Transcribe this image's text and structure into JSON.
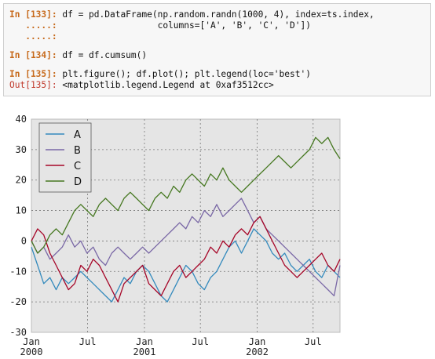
{
  "cells": [
    {
      "in_prompt": "In [133]:",
      "lines": [
        {
          "prompt": "In [133]:",
          "code": " df = pd.DataFrame(np.random.randn(1000, 4), index=ts.index,"
        },
        {
          "prompt": "   .....:",
          "code": "                   columns=['A', 'B', 'C', 'D'])"
        },
        {
          "prompt": "   .....:",
          "code": ""
        }
      ]
    },
    {
      "lines": [
        {
          "prompt": "In [134]:",
          "code": " df = df.cumsum()"
        }
      ]
    },
    {
      "lines": [
        {
          "prompt": "In [135]:",
          "code": " plt.figure(); df.plot(); plt.legend(loc='best')"
        }
      ],
      "out_prompt": "Out[135]:",
      "out_text": " <matplotlib.legend.Legend at 0xaf3512cc>"
    }
  ],
  "chart_data": {
    "type": "line",
    "title": "",
    "xlabel": "",
    "ylabel": "",
    "ylim": [
      -30,
      40
    ],
    "y_ticks": [
      -30,
      -20,
      -10,
      0,
      10,
      20,
      30,
      40
    ],
    "x_ticks": [
      {
        "label": "Jan\n2000",
        "t": 0
      },
      {
        "label": "Jul",
        "t": 182
      },
      {
        "label": "Jan\n2001",
        "t": 366
      },
      {
        "label": "Jul",
        "t": 547
      },
      {
        "label": "Jan\n2002",
        "t": 731
      },
      {
        "label": "Jul",
        "t": 912
      }
    ],
    "x_range_days": [
      0,
      999
    ],
    "grid": true,
    "legend_position": "top-left",
    "series": [
      {
        "name": "A",
        "color": "#348abd",
        "points": [
          [
            0,
            -2
          ],
          [
            20,
            -8
          ],
          [
            40,
            -14
          ],
          [
            60,
            -12
          ],
          [
            80,
            -16
          ],
          [
            100,
            -12
          ],
          [
            120,
            -14
          ],
          [
            140,
            -12
          ],
          [
            160,
            -10
          ],
          [
            180,
            -12
          ],
          [
            200,
            -14
          ],
          [
            220,
            -16
          ],
          [
            240,
            -18
          ],
          [
            260,
            -20
          ],
          [
            280,
            -16
          ],
          [
            300,
            -12
          ],
          [
            320,
            -14
          ],
          [
            340,
            -10
          ],
          [
            360,
            -8
          ],
          [
            380,
            -10
          ],
          [
            400,
            -14
          ],
          [
            420,
            -18
          ],
          [
            440,
            -20
          ],
          [
            460,
            -16
          ],
          [
            480,
            -12
          ],
          [
            500,
            -8
          ],
          [
            520,
            -10
          ],
          [
            540,
            -14
          ],
          [
            560,
            -16
          ],
          [
            580,
            -12
          ],
          [
            600,
            -10
          ],
          [
            620,
            -6
          ],
          [
            640,
            -2
          ],
          [
            660,
            0
          ],
          [
            680,
            -4
          ],
          [
            700,
            0
          ],
          [
            720,
            4
          ],
          [
            740,
            2
          ],
          [
            760,
            0
          ],
          [
            780,
            -4
          ],
          [
            800,
            -6
          ],
          [
            820,
            -4
          ],
          [
            840,
            -8
          ],
          [
            860,
            -10
          ],
          [
            880,
            -8
          ],
          [
            900,
            -6
          ],
          [
            920,
            -10
          ],
          [
            940,
            -12
          ],
          [
            960,
            -8
          ],
          [
            980,
            -10
          ],
          [
            999,
            -12
          ]
        ]
      },
      {
        "name": "B",
        "color": "#7a68a6",
        "points": [
          [
            0,
            0
          ],
          [
            20,
            -4
          ],
          [
            40,
            -2
          ],
          [
            60,
            -6
          ],
          [
            80,
            -4
          ],
          [
            100,
            -2
          ],
          [
            120,
            2
          ],
          [
            140,
            -2
          ],
          [
            160,
            0
          ],
          [
            180,
            -4
          ],
          [
            200,
            -2
          ],
          [
            220,
            -6
          ],
          [
            240,
            -8
          ],
          [
            260,
            -4
          ],
          [
            280,
            -2
          ],
          [
            300,
            -4
          ],
          [
            320,
            -6
          ],
          [
            340,
            -4
          ],
          [
            360,
            -2
          ],
          [
            380,
            -4
          ],
          [
            400,
            -2
          ],
          [
            420,
            0
          ],
          [
            440,
            2
          ],
          [
            460,
            4
          ],
          [
            480,
            6
          ],
          [
            500,
            4
          ],
          [
            520,
            8
          ],
          [
            540,
            6
          ],
          [
            560,
            10
          ],
          [
            580,
            8
          ],
          [
            600,
            12
          ],
          [
            620,
            8
          ],
          [
            640,
            10
          ],
          [
            660,
            12
          ],
          [
            680,
            14
          ],
          [
            700,
            10
          ],
          [
            720,
            6
          ],
          [
            740,
            8
          ],
          [
            760,
            4
          ],
          [
            780,
            2
          ],
          [
            800,
            0
          ],
          [
            820,
            -2
          ],
          [
            840,
            -4
          ],
          [
            860,
            -6
          ],
          [
            880,
            -8
          ],
          [
            900,
            -10
          ],
          [
            920,
            -12
          ],
          [
            940,
            -14
          ],
          [
            960,
            -16
          ],
          [
            980,
            -18
          ],
          [
            999,
            -8
          ]
        ]
      },
      {
        "name": "C",
        "color": "#a60628",
        "points": [
          [
            0,
            0
          ],
          [
            20,
            4
          ],
          [
            40,
            2
          ],
          [
            60,
            -4
          ],
          [
            80,
            -8
          ],
          [
            100,
            -12
          ],
          [
            120,
            -16
          ],
          [
            140,
            -14
          ],
          [
            160,
            -8
          ],
          [
            180,
            -10
          ],
          [
            200,
            -6
          ],
          [
            220,
            -8
          ],
          [
            240,
            -12
          ],
          [
            260,
            -16
          ],
          [
            280,
            -20
          ],
          [
            300,
            -14
          ],
          [
            320,
            -12
          ],
          [
            340,
            -10
          ],
          [
            360,
            -8
          ],
          [
            380,
            -14
          ],
          [
            400,
            -16
          ],
          [
            420,
            -18
          ],
          [
            440,
            -14
          ],
          [
            460,
            -10
          ],
          [
            480,
            -8
          ],
          [
            500,
            -12
          ],
          [
            520,
            -10
          ],
          [
            540,
            -8
          ],
          [
            560,
            -6
          ],
          [
            580,
            -2
          ],
          [
            600,
            -4
          ],
          [
            620,
            0
          ],
          [
            640,
            -2
          ],
          [
            660,
            2
          ],
          [
            680,
            4
          ],
          [
            700,
            2
          ],
          [
            720,
            6
          ],
          [
            740,
            8
          ],
          [
            760,
            4
          ],
          [
            780,
            0
          ],
          [
            800,
            -4
          ],
          [
            820,
            -8
          ],
          [
            840,
            -10
          ],
          [
            860,
            -12
          ],
          [
            880,
            -10
          ],
          [
            900,
            -8
          ],
          [
            920,
            -6
          ],
          [
            940,
            -4
          ],
          [
            960,
            -8
          ],
          [
            980,
            -10
          ],
          [
            999,
            -6
          ]
        ]
      },
      {
        "name": "D",
        "color": "#467821",
        "points": [
          [
            0,
            0
          ],
          [
            20,
            -4
          ],
          [
            40,
            -2
          ],
          [
            60,
            2
          ],
          [
            80,
            4
          ],
          [
            100,
            2
          ],
          [
            120,
            6
          ],
          [
            140,
            10
          ],
          [
            160,
            12
          ],
          [
            180,
            10
          ],
          [
            200,
            8
          ],
          [
            220,
            12
          ],
          [
            240,
            14
          ],
          [
            260,
            12
          ],
          [
            280,
            10
          ],
          [
            300,
            14
          ],
          [
            320,
            16
          ],
          [
            340,
            14
          ],
          [
            360,
            12
          ],
          [
            380,
            10
          ],
          [
            400,
            14
          ],
          [
            420,
            16
          ],
          [
            440,
            14
          ],
          [
            460,
            18
          ],
          [
            480,
            16
          ],
          [
            500,
            20
          ],
          [
            520,
            22
          ],
          [
            540,
            20
          ],
          [
            560,
            18
          ],
          [
            580,
            22
          ],
          [
            600,
            20
          ],
          [
            620,
            24
          ],
          [
            640,
            20
          ],
          [
            660,
            18
          ],
          [
            680,
            16
          ],
          [
            700,
            18
          ],
          [
            720,
            20
          ],
          [
            740,
            22
          ],
          [
            760,
            24
          ],
          [
            780,
            26
          ],
          [
            800,
            28
          ],
          [
            820,
            26
          ],
          [
            840,
            24
          ],
          [
            860,
            26
          ],
          [
            880,
            28
          ],
          [
            900,
            30
          ],
          [
            920,
            34
          ],
          [
            940,
            32
          ],
          [
            960,
            34
          ],
          [
            980,
            30
          ],
          [
            999,
            27
          ]
        ]
      }
    ]
  }
}
